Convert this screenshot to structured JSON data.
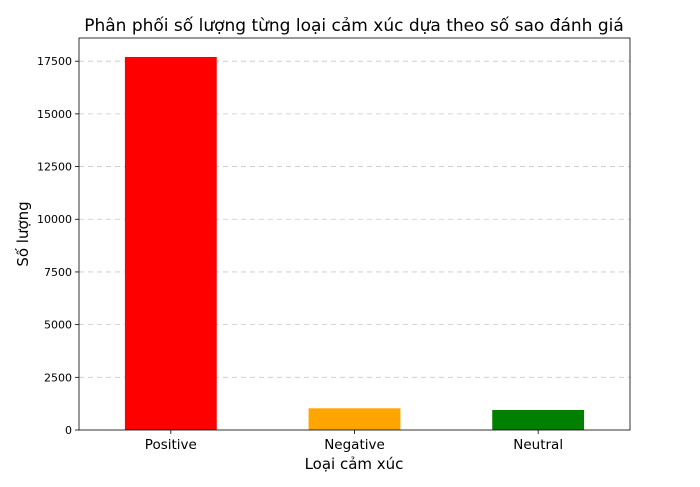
{
  "chart_data": {
    "type": "bar",
    "title": "Phân phối số lượng từng loại cảm xúc dựa theo số sao đánh giá",
    "xlabel": "Loại cảm xúc",
    "ylabel": "Số lượng",
    "categories": [
      "Positive",
      "Negative",
      "Neutral"
    ],
    "values": [
      17700,
      1030,
      950
    ],
    "colors": [
      "#ff0000",
      "#ffa500",
      "#008000"
    ],
    "ylim": [
      0,
      18600
    ],
    "yticks": [
      0,
      2500,
      5000,
      7500,
      10000,
      12500,
      15000,
      17500
    ],
    "ytick_labels": [
      "0",
      "2500",
      "5000",
      "7500",
      "10000",
      "12500",
      "15000",
      "17500"
    ],
    "grid": "horizontal-dashed",
    "legend": "none"
  }
}
